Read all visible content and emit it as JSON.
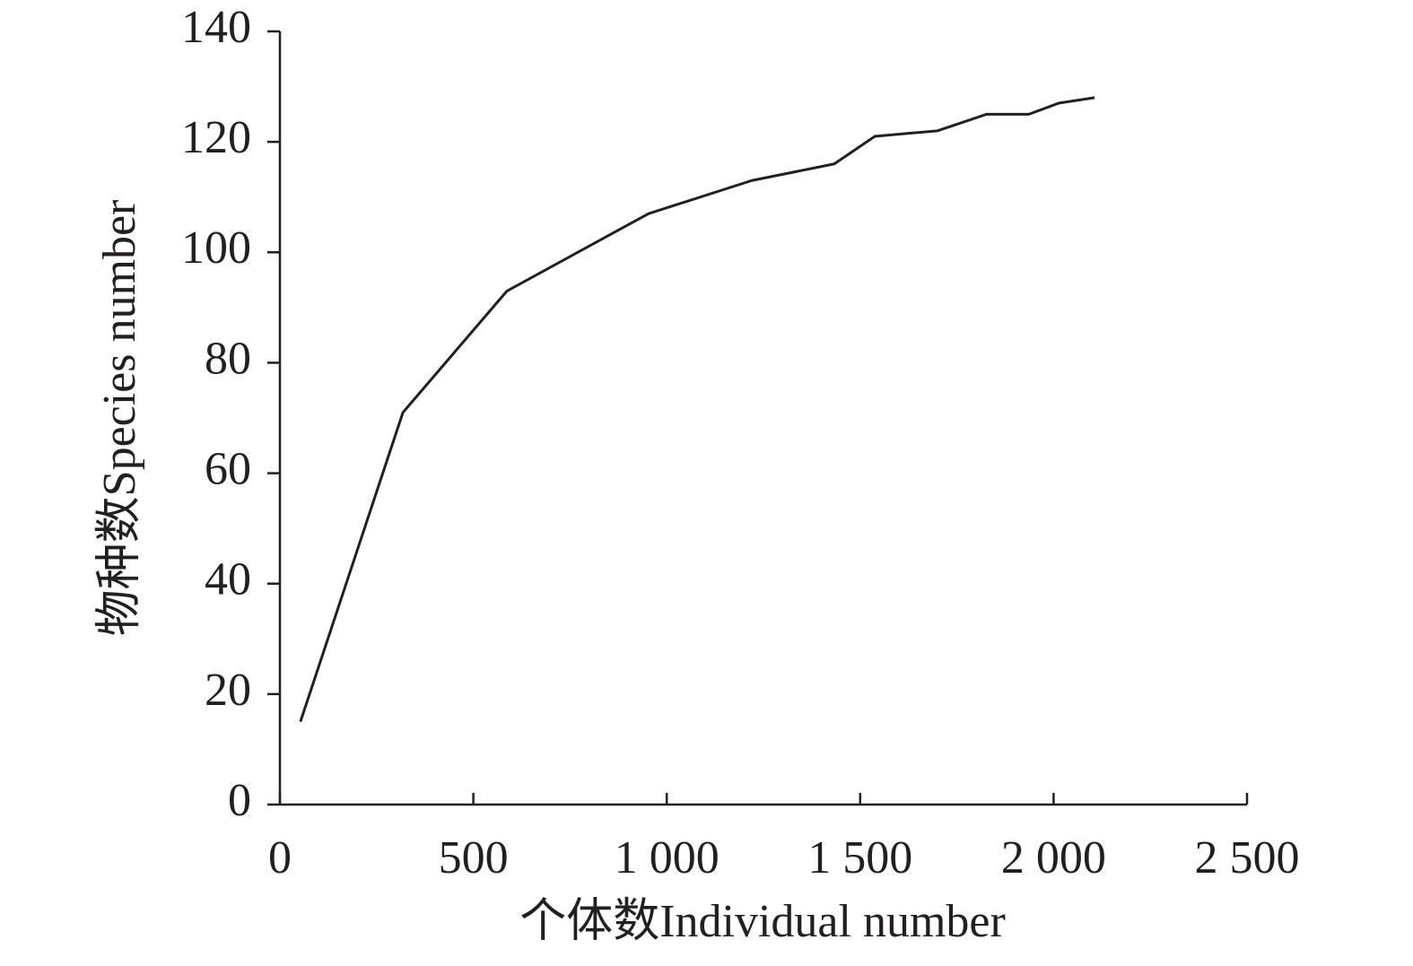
{
  "chart_data": {
    "type": "line",
    "x_label": "个体数Individual number",
    "y_label": "物种数Species number",
    "x": [
      53,
      318,
      587,
      953,
      1220,
      1433,
      1538,
      1700,
      1827,
      1936,
      2013,
      2106
    ],
    "series": [
      {
        "color": "#231f20",
        "values": [
          15,
          71,
          93,
          107,
          113,
          116,
          121,
          122,
          125,
          125,
          127,
          128
        ]
      }
    ],
    "xlim": [
      0,
      2500
    ],
    "xticks": [
      0,
      500,
      {
        "value": 1000,
        "label": "1 000"
      },
      {
        "value": 1500,
        "label": "1 500"
      },
      {
        "value": 2000,
        "label": "2 000"
      },
      {
        "value": 2500,
        "label": "2 500"
      }
    ],
    "ylim": [
      0,
      140
    ],
    "yticks": [
      0,
      20,
      40,
      60,
      80,
      100,
      120,
      140
    ],
    "grid": false
  }
}
